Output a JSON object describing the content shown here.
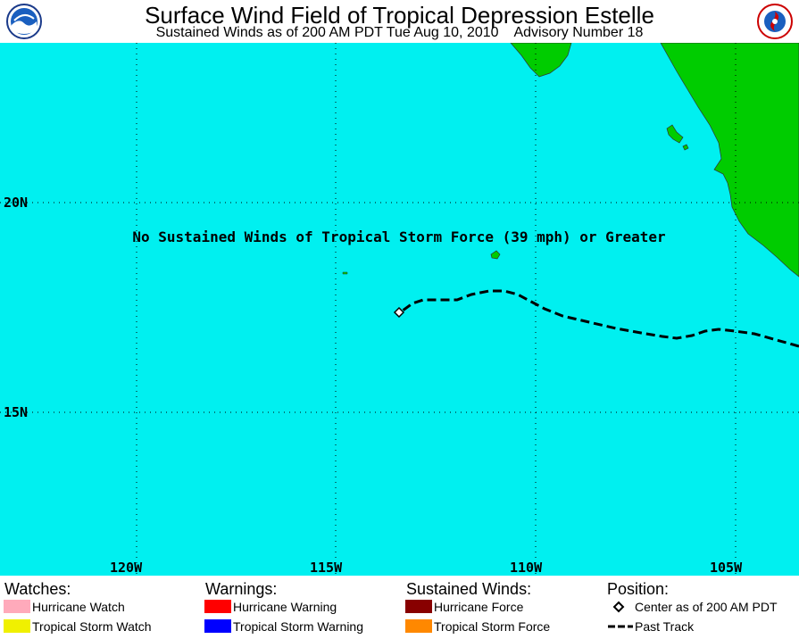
{
  "header": {
    "title": "Surface Wind Field of Tropical Depression Estelle",
    "subtitle": "Sustained Winds as of 200 AM PDT Tue Aug 10, 2010    Advisory Number 18",
    "logo_left": "NOAA",
    "logo_right": "NATIONAL WEATHER SERVICE"
  },
  "map": {
    "message": "No Sustained Winds of Tropical Storm Force (39 mph) or Greater",
    "lat_labels": [
      "20N",
      "15N"
    ],
    "lon_labels": [
      "120W",
      "115W",
      "110W",
      "105W"
    ],
    "colors": {
      "ocean": "#00f0f0",
      "land": "#00cc00",
      "track": "#000000"
    },
    "center_symbol": "diamond-icon"
  },
  "legend": {
    "watches": {
      "heading": "Watches:",
      "items": [
        {
          "label": "Hurricane Watch",
          "color": "#ffaabb"
        },
        {
          "label": "Tropical Storm Watch",
          "color": "#f0f000"
        }
      ]
    },
    "warnings": {
      "heading": "Warnings:",
      "items": [
        {
          "label": "Hurricane Warning",
          "color": "#ff0000"
        },
        {
          "label": "Tropical Storm Warning",
          "color": "#0000ff"
        }
      ]
    },
    "winds": {
      "heading": "Sustained Winds:",
      "items": [
        {
          "label": "Hurricane Force",
          "color": "#880000"
        },
        {
          "label": "Tropical Storm Force",
          "color": "#ff8800"
        }
      ]
    },
    "position": {
      "heading": "Position:",
      "items": [
        {
          "label": "Center as of 200 AM PDT",
          "icon": "diamond-icon"
        },
        {
          "label": "Past Track",
          "icon": "dashed-line-icon"
        }
      ]
    }
  }
}
